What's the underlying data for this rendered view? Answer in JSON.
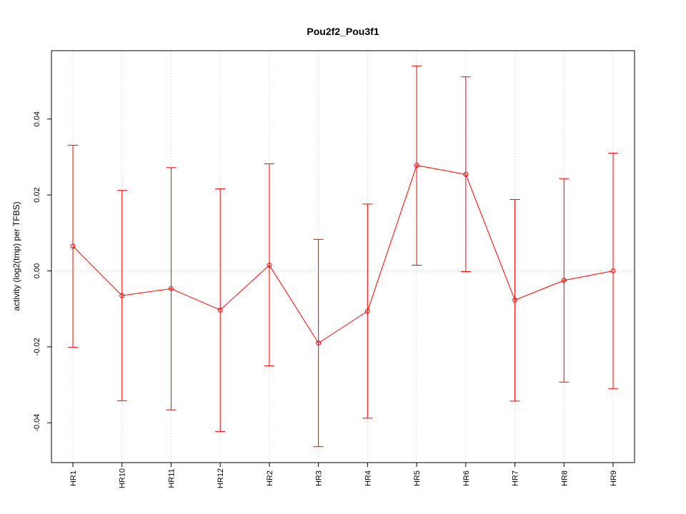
{
  "chart_data": {
    "type": "line",
    "title": "Pou2f2_Pou3f1",
    "xlabel": "",
    "ylabel": "activity (log2(tmp) per TFBS)",
    "categories": [
      "HR1",
      "HR10",
      "HR11",
      "HR12",
      "HR2",
      "HR3",
      "HR4",
      "HR5",
      "HR6",
      "HR7",
      "HR8",
      "HR9"
    ],
    "series": [
      {
        "values": [
          0.0065,
          -0.0065,
          -0.0047,
          -0.0103,
          0.0015,
          -0.019,
          -0.0106,
          0.0278,
          0.0254,
          -0.0077,
          -0.0025,
          0.0
        ],
        "lower": [
          -0.0201,
          -0.0342,
          -0.0366,
          -0.0423,
          -0.025,
          -0.0463,
          -0.0388,
          0.0015,
          -0.0002,
          -0.0343,
          -0.0293,
          -0.031
        ],
        "upper": [
          0.0331,
          0.0212,
          0.0272,
          0.0216,
          0.0282,
          0.0083,
          0.0176,
          0.054,
          0.0511,
          0.0188,
          0.0243,
          0.031
        ]
      }
    ],
    "yticks": [
      -0.04,
      -0.02,
      0.0,
      0.02,
      0.04
    ],
    "ytick_labels": [
      "-0.04",
      "-0.02",
      "0.00",
      "0.02",
      "0.04"
    ],
    "ylim": [
      -0.0505,
      0.058
    ],
    "grid": true,
    "color": "#ff0000",
    "grid_color": "#cccccc"
  }
}
